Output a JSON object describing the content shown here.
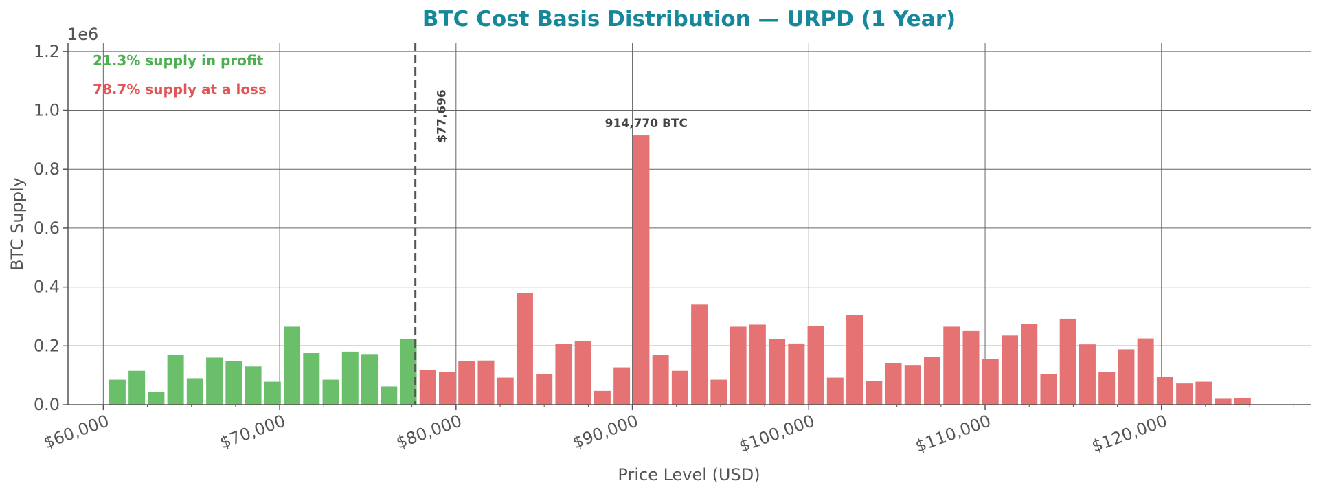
{
  "chart_data": {
    "type": "bar",
    "title": "BTC Cost Basis Distribution — URPD (1 Year)",
    "xlabel": "Price Level (USD)",
    "ylabel": "BTC Supply",
    "y_scale_label": "1e6",
    "xlim": [
      58000,
      128500
    ],
    "ylim": [
      0,
      1.23
    ],
    "grid": true,
    "x_ticks": [
      60000,
      70000,
      80000,
      90000,
      100000,
      110000,
      120000
    ],
    "x_tick_labels": [
      "$60,000",
      "$70,000",
      "$80,000",
      "$90,000",
      "$100,000",
      "$110,000",
      "$120,000"
    ],
    "y_ticks": [
      0,
      0.2,
      0.4,
      0.6,
      0.8,
      1.0,
      1.2
    ],
    "y_tick_labels": [
      "0.0",
      "0.2",
      "0.4",
      "0.6",
      "0.8",
      "1.0",
      "1.2"
    ],
    "bin_width": 1100,
    "current_price": 77696,
    "current_price_label": "$77,696",
    "peak_label": "914,770 BTC",
    "peak_x": 90400,
    "peak_value": 0.91477,
    "profit_label": "21.3% supply in profit",
    "loss_label": "78.7% supply at a loss",
    "colors": {
      "profit": "#6bbf6b",
      "loss": "#e57373",
      "title": "#17879a",
      "profit_text": "#4caf50",
      "loss_text": "#e05555",
      "grid": "#666666",
      "axis": "#555555",
      "current_price_line": "#555555"
    },
    "series": [
      {
        "group": "profit",
        "x": [
          60800,
          61900,
          63000,
          64100,
          65200,
          66300,
          67400,
          68500,
          69600,
          70700,
          71800,
          72900,
          74000,
          75100,
          76200,
          77300
        ],
        "values": [
          0.085,
          0.115,
          0.043,
          0.17,
          0.09,
          0.16,
          0.148,
          0.13,
          0.078,
          0.265,
          0.175,
          0.085,
          0.18,
          0.172,
          0.062,
          0.223
        ]
      },
      {
        "group": "loss",
        "x": [
          78400,
          79500,
          80600,
          81700,
          82800,
          83900,
          85000,
          86100,
          87200,
          88300,
          89400,
          90500,
          91600,
          92700,
          93800,
          94900,
          96000,
          97100,
          98200,
          99300,
          100400,
          101500,
          102600,
          103700,
          104800,
          105900,
          107000,
          108100,
          109200,
          110300,
          111400,
          112500,
          113600,
          114700,
          115800,
          116900,
          118000,
          119100,
          120200,
          121300,
          122400,
          123500,
          124600
        ],
        "values": [
          0.118,
          0.11,
          0.148,
          0.15,
          0.092,
          0.38,
          0.105,
          0.207,
          0.217,
          0.047,
          0.127,
          0.91477,
          0.168,
          0.115,
          0.34,
          0.085,
          0.265,
          0.272,
          0.223,
          0.208,
          0.268,
          0.092,
          0.305,
          0.08,
          0.142,
          0.135,
          0.163,
          0.265,
          0.25,
          0.155,
          0.235,
          0.275,
          0.103,
          0.292,
          0.205,
          0.11,
          0.188,
          0.225,
          0.095,
          0.072,
          0.078,
          0.02,
          0.022
        ]
      }
    ]
  }
}
